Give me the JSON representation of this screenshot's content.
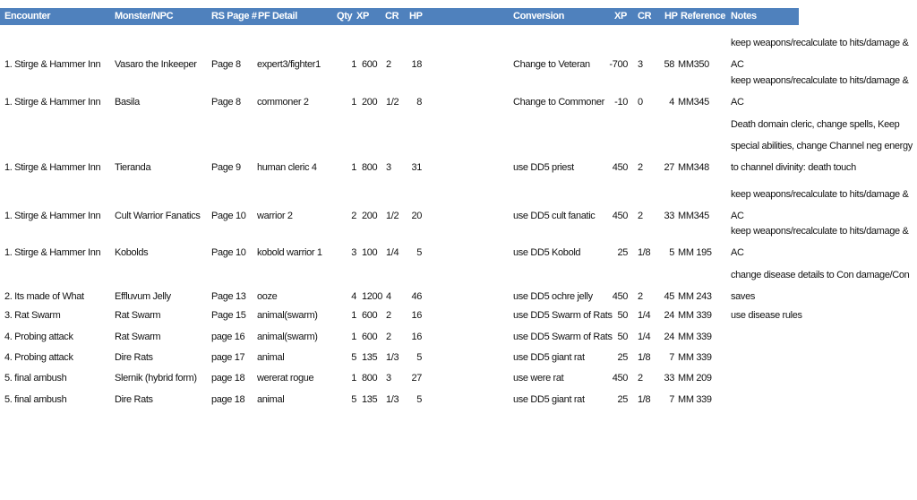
{
  "header": [
    "Encounter",
    "Monster/NPC",
    "RS Page #",
    "PF Detail",
    "Qty",
    "XP",
    "CR",
    "HP",
    "Conversion",
    "XP",
    "CR",
    "HP",
    "Reference",
    "Notes"
  ],
  "rows": [
    [
      "1. Stirge & Hammer Inn",
      "Vasaro the Inkeeper",
      "Page 8",
      "expert3/fighter1",
      "1",
      "600",
      "2",
      "18",
      "Change to Veteran",
      "-700",
      "3",
      "58",
      "MM350",
      "keep weapons/recalculate to hits/damage & AC"
    ],
    [
      "1. Stirge & Hammer Inn",
      "Basila",
      "Page 8",
      "commoner 2",
      "1",
      "200",
      "1/2",
      "8",
      "Change to Commoner",
      "-10",
      "0",
      "4",
      "MM345",
      "keep weapons/recalculate to hits/damage & AC"
    ],
    [
      "1. Stirge & Hammer Inn",
      "Tieranda",
      "Page 9",
      "human cleric 4",
      "1",
      "800",
      "3",
      "31",
      "use DD5 priest",
      "450",
      "2",
      "27",
      "MM348",
      "Death domain cleric, change spells, Keep special abilities, change Channel neg energy to channel divinity: death touch"
    ],
    [
      "1. Stirge & Hammer Inn",
      "Cult Warrior Fanatics",
      "Page 10",
      "warrior 2",
      "2",
      "200",
      "1/2",
      "20",
      "use DD5 cult fanatic",
      "450",
      "2",
      "33",
      "MM345",
      "keep weapons/recalculate to hits/damage & AC"
    ],
    [
      "1. Stirge & Hammer Inn",
      "Kobolds",
      "Page 10",
      "kobold warrior 1",
      "3",
      "100",
      "1/4",
      "5",
      "use DD5 Kobold",
      "25",
      "1/8",
      "5",
      "MM 195",
      "keep weapons/recalculate to hits/damage & AC"
    ],
    [
      "2. Its made of What",
      "Effluvum Jelly",
      "Page 13",
      "ooze",
      "4",
      "1200",
      "4",
      "46",
      "use DD5 ochre jelly",
      "450",
      "2",
      "45",
      "MM 243",
      "change disease details to Con damage/Con saves"
    ],
    [
      "3. Rat Swarm",
      "Rat Swarm",
      "Page 15",
      "animal(swarm)",
      "1",
      "600",
      "2",
      "16",
      "use DD5 Swarm of Rats",
      "50",
      "1/4",
      "24",
      "MM 339",
      "use disease rules"
    ],
    [
      "4. Probing attack",
      "Rat Swarm",
      "page 16",
      "animal(swarm)",
      "1",
      "600",
      "2",
      "16",
      "use DD5 Swarm of Rats",
      "50",
      "1/4",
      "24",
      "MM 339",
      null
    ],
    [
      "4. Probing attack",
      "Dire Rats",
      "page 17",
      "animal",
      "5",
      "135",
      "1/3",
      "5",
      "use DD5 giant rat",
      "25",
      "1/8",
      "7",
      "MM 339",
      null
    ],
    [
      "5. final ambush",
      "Slernik (hybrid form)",
      "page 18",
      "wererat rogue",
      "1",
      "800",
      "3",
      "27",
      "use were rat",
      "450",
      "2",
      "33",
      "MM 209",
      null
    ],
    [
      "5. final ambush",
      "Dire Rats",
      "page 18",
      "animal",
      "5",
      "135",
      "1/3",
      "5",
      "use DD5 giant rat",
      "25",
      "1/8",
      "7",
      "MM 339",
      null
    ]
  ]
}
